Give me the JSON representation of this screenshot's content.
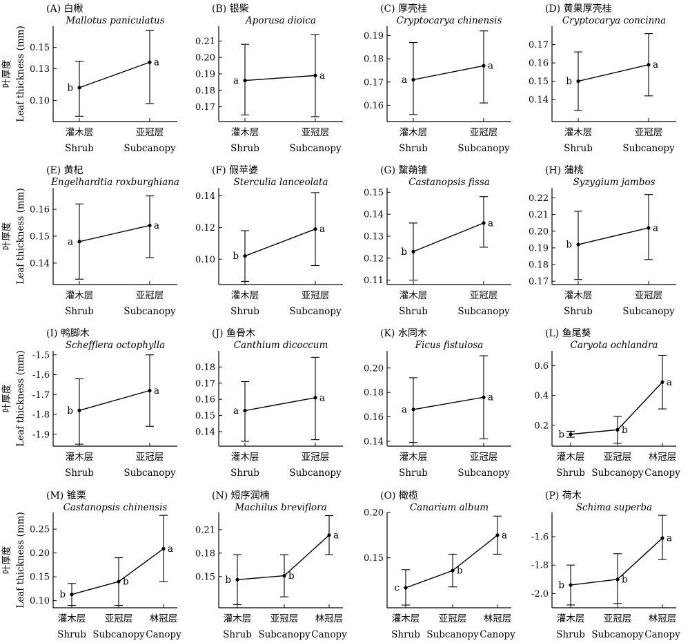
{
  "figure": {
    "ylabel_cn": "叶厚度",
    "ylabel_en": "Leaf thickness (mm)"
  },
  "chart_data": [
    {
      "id": "A",
      "type": "line",
      "label": "(A)",
      "title_cn": "白楸",
      "title_species": "Mallotus paniculatus",
      "categories_cn": [
        "灌木层",
        "亚冠层"
      ],
      "categories_en": [
        "Shrub",
        "Subcanopy"
      ],
      "mean": [
        0.112,
        0.136
      ],
      "lower": [
        0.085,
        0.097
      ],
      "upper": [
        0.137,
        0.166
      ],
      "sig": [
        "b",
        "a"
      ],
      "ylim": [
        0.08,
        0.17
      ],
      "yticks": [
        0.1,
        0.13,
        0.15
      ],
      "ytick_labels": [
        "0.10",
        "0.13",
        "0.15"
      ]
    },
    {
      "id": "B",
      "type": "line",
      "label": "(B)",
      "title_cn": "银柴",
      "title_species": "Aporusa dioica",
      "categories_cn": [
        "灌木层",
        "亚冠层"
      ],
      "categories_en": [
        "Shrub",
        "Subcanopy"
      ],
      "mean": [
        0.186,
        0.189
      ],
      "lower": [
        0.165,
        0.164
      ],
      "upper": [
        0.208,
        0.214
      ],
      "sig": [
        "a",
        "a"
      ],
      "ylim": [
        0.161,
        0.219
      ],
      "yticks": [
        0.17,
        0.18,
        0.19,
        0.2,
        0.21
      ],
      "ytick_labels": [
        "0.17",
        "0.18",
        "0.19",
        "0.20",
        "0.21"
      ]
    },
    {
      "id": "C",
      "type": "line",
      "label": "(C)",
      "title_cn": "厚壳桂",
      "title_species": "Cryptocarya chinensis",
      "categories_cn": [
        "灌木层",
        "亚冠层"
      ],
      "categories_en": [
        "Shrub",
        "Subcanopy"
      ],
      "mean": [
        0.171,
        0.177
      ],
      "lower": [
        0.156,
        0.161
      ],
      "upper": [
        0.187,
        0.192
      ],
      "sig": [
        "a",
        "a"
      ],
      "ylim": [
        0.153,
        0.194
      ],
      "yticks": [
        0.16,
        0.17,
        0.18,
        0.19
      ],
      "ytick_labels": [
        "0.16",
        "0.17",
        "0.18",
        "0.19"
      ]
    },
    {
      "id": "D",
      "type": "line",
      "label": "(D)",
      "title_cn": "黄果厚壳桂",
      "title_species": "Cryptocarya concinna",
      "categories_cn": [
        "灌木层",
        "亚冠层"
      ],
      "categories_en": [
        "Shrub",
        "Subcanopy"
      ],
      "mean": [
        0.15,
        0.159
      ],
      "lower": [
        0.134,
        0.142
      ],
      "upper": [
        0.166,
        0.176
      ],
      "sig": [
        "b",
        "a"
      ],
      "ylim": [
        0.128,
        0.18
      ],
      "yticks": [
        0.14,
        0.15,
        0.16,
        0.17
      ],
      "ytick_labels": [
        "0.14",
        "0.15",
        "0.16",
        "0.17"
      ]
    },
    {
      "id": "E",
      "type": "line",
      "label": "(E)",
      "title_cn": "黄杞",
      "title_species": "Engelhardtia roxburghiana",
      "categories_cn": [
        "灌木层",
        "亚冠层"
      ],
      "categories_en": [
        "Shrub",
        "Subcanopy"
      ],
      "mean": [
        0.148,
        0.154
      ],
      "lower": [
        0.134,
        0.142
      ],
      "upper": [
        0.162,
        0.165
      ],
      "sig": [
        "a",
        "a"
      ],
      "ylim": [
        0.132,
        0.168
      ],
      "yticks": [
        0.14,
        0.15,
        0.16
      ],
      "ytick_labels": [
        "0.14",
        "0.15",
        "0.16"
      ]
    },
    {
      "id": "F",
      "type": "line",
      "label": "(F)",
      "title_cn": "假苹婆",
      "title_species": "Sterculia lanceolata",
      "categories_cn": [
        "灌木层",
        "亚冠层"
      ],
      "categories_en": [
        "Shrub",
        "Subcanopy"
      ],
      "mean": [
        0.102,
        0.119
      ],
      "lower": [
        0.086,
        0.096
      ],
      "upper": [
        0.118,
        0.142
      ],
      "sig": [
        "b",
        "a"
      ],
      "ylim": [
        0.084,
        0.145
      ],
      "yticks": [
        0.1,
        0.12,
        0.14
      ],
      "ytick_labels": [
        "0.10",
        "0.12",
        "0.14"
      ]
    },
    {
      "id": "G",
      "type": "line",
      "label": "(G)",
      "title_cn": "黧蒴锥",
      "title_species": "Castanopsis fissa",
      "categories_cn": [
        "灌木层",
        "亚冠层"
      ],
      "categories_en": [
        "Shrub",
        "Subcanopy"
      ],
      "mean": [
        0.123,
        0.136
      ],
      "lower": [
        0.11,
        0.125
      ],
      "upper": [
        0.136,
        0.148
      ],
      "sig": [
        "b",
        "a"
      ],
      "ylim": [
        0.108,
        0.152
      ],
      "yticks": [
        0.11,
        0.12,
        0.13,
        0.14,
        0.15
      ],
      "ytick_labels": [
        "0.11",
        "0.12",
        "0.13",
        "0.14",
        "0.15"
      ]
    },
    {
      "id": "H",
      "type": "line",
      "label": "(H)",
      "title_cn": "蒲桃",
      "title_species": "Syzygium jambos",
      "categories_cn": [
        "灌木层",
        "亚冠层"
      ],
      "categories_en": [
        "Shrub",
        "Subcanopy"
      ],
      "mean": [
        0.192,
        0.202
      ],
      "lower": [
        0.171,
        0.183
      ],
      "upper": [
        0.212,
        0.222
      ],
      "sig": [
        "b",
        "a"
      ],
      "ylim": [
        0.168,
        0.226
      ],
      "yticks": [
        0.17,
        0.18,
        0.19,
        0.2,
        0.21,
        0.22
      ],
      "ytick_labels": [
        "0.17",
        "0.18",
        "0.19",
        "0.20",
        "0.21",
        "0.22"
      ]
    },
    {
      "id": "I",
      "type": "line",
      "label": "(I)",
      "title_cn": "鸭脚木",
      "title_species": "Schefflera octophylla",
      "categories_cn": [
        "灌木层",
        "亚冠层"
      ],
      "categories_en": [
        "Shrub",
        "Subcanopy"
      ],
      "mean": [
        -1.78,
        -1.68
      ],
      "lower": [
        -1.95,
        -1.86
      ],
      "upper": [
        -1.62,
        -1.5
      ],
      "sig": [
        "b",
        "a"
      ],
      "ylim": [
        -1.96,
        -1.48
      ],
      "yticks": [
        -1.9,
        -1.8,
        -1.7,
        -1.6,
        -1.5
      ],
      "ytick_labels": [
        "-1.9",
        "-1.8",
        "-1.7",
        "-1.6",
        "-1.5"
      ]
    },
    {
      "id": "J",
      "type": "line",
      "label": "(J)",
      "title_cn": "鱼骨木",
      "title_species": "Canthium dicoccum",
      "categories_cn": [
        "灌木层",
        "亚冠层"
      ],
      "categories_en": [
        "Shrub",
        "Subcanopy"
      ],
      "mean": [
        0.153,
        0.161
      ],
      "lower": [
        0.134,
        0.135
      ],
      "upper": [
        0.171,
        0.186
      ],
      "sig": [
        "a",
        "a"
      ],
      "ylim": [
        0.131,
        0.19
      ],
      "yticks": [
        0.14,
        0.15,
        0.16,
        0.17,
        0.18
      ],
      "ytick_labels": [
        "0.14",
        "0.15",
        "0.16",
        "0.17",
        "0.18"
      ]
    },
    {
      "id": "K",
      "type": "line",
      "label": "(K)",
      "title_cn": "水同木",
      "title_species": "Ficus fistulosa",
      "categories_cn": [
        "灌木层",
        "亚冠层"
      ],
      "categories_en": [
        "Shrub",
        "Subcanopy"
      ],
      "mean": [
        0.166,
        0.176
      ],
      "lower": [
        0.139,
        0.142
      ],
      "upper": [
        0.192,
        0.21
      ],
      "sig": [
        "a",
        "a"
      ],
      "ylim": [
        0.136,
        0.214
      ],
      "yticks": [
        0.14,
        0.16,
        0.18,
        0.2
      ],
      "ytick_labels": [
        "0.14",
        "0.16",
        "0.18",
        "0.20"
      ]
    },
    {
      "id": "L",
      "type": "line",
      "label": "(L)",
      "title_cn": "鱼尾葵",
      "title_species": "Caryota ochlandra",
      "categories_cn": [
        "灌木层",
        "亚冠层",
        "林冠层"
      ],
      "categories_en": [
        "Shrub",
        "Subcanopy",
        "Canopy"
      ],
      "mean": [
        0.14,
        0.17,
        0.49
      ],
      "lower": [
        0.12,
        0.08,
        0.31
      ],
      "upper": [
        0.16,
        0.26,
        0.67
      ],
      "sig": [
        "b",
        "b",
        "a"
      ],
      "ylim": [
        0.06,
        0.7
      ],
      "yticks": [
        0.2,
        0.4,
        0.6
      ],
      "ytick_labels": [
        "0.2",
        "0.4",
        "0.6"
      ]
    },
    {
      "id": "M",
      "type": "line",
      "label": "(M)",
      "title_cn": "锥栗",
      "title_species": "Castanopsis chinensis",
      "categories_cn": [
        "灌木层",
        "亚冠层",
        "林冠层"
      ],
      "categories_en": [
        "Shrub",
        "Subcanopy",
        "Canopy"
      ],
      "mean": [
        0.113,
        0.14,
        0.209
      ],
      "lower": [
        0.09,
        0.09,
        0.14
      ],
      "upper": [
        0.136,
        0.19,
        0.279
      ],
      "sig": [
        "b",
        "b",
        "a"
      ],
      "ylim": [
        0.085,
        0.285
      ],
      "yticks": [
        0.1,
        0.15,
        0.2,
        0.25
      ],
      "ytick_labels": [
        "0.10",
        "0.15",
        "0.20",
        "0.25"
      ]
    },
    {
      "id": "N",
      "type": "line",
      "label": "(N)",
      "title_cn": "短序润楠",
      "title_species": "Machilus breviflora",
      "categories_cn": [
        "灌木层",
        "亚冠层",
        "林冠层"
      ],
      "categories_en": [
        "Shrub",
        "Subcanopy",
        "Canopy"
      ],
      "mean": [
        0.146,
        0.151,
        0.203
      ],
      "lower": [
        0.114,
        0.124,
        0.178
      ],
      "upper": [
        0.178,
        0.178,
        0.228
      ],
      "sig": [
        "b",
        "b",
        "a"
      ],
      "ylim": [
        0.11,
        0.232
      ],
      "yticks": [
        0.15,
        0.18,
        0.21
      ],
      "ytick_labels": [
        "0.15",
        "0.18",
        "0.21"
      ]
    },
    {
      "id": "O",
      "type": "line",
      "label": "(O)",
      "title_cn": "橄榄",
      "title_species": "Canarium album",
      "categories_cn": [
        "灌木层",
        "亚冠层",
        "林冠层"
      ],
      "categories_en": [
        "Shrub",
        "Subcanopy",
        "Canopy"
      ],
      "mean": [
        0.117,
        0.136,
        0.175
      ],
      "lower": [
        0.098,
        0.118,
        0.154
      ],
      "upper": [
        0.137,
        0.154,
        0.196
      ],
      "sig": [
        "c",
        "b",
        "a"
      ],
      "ylim": [
        0.095,
        0.2
      ],
      "yticks": [
        0.15,
        0.2
      ],
      "ytick_labels": [
        "0.15",
        "0.20"
      ]
    },
    {
      "id": "P",
      "type": "line",
      "label": "(P)",
      "title_cn": "荷木",
      "title_species": "Schima superba",
      "categories_cn": [
        "灌木层",
        "亚冠层",
        "林冠层"
      ],
      "categories_en": [
        "Shrub",
        "Subcanopy",
        "Canopy"
      ],
      "mean": [
        -1.94,
        -1.9,
        -1.61
      ],
      "lower": [
        -2.08,
        -2.07,
        -1.76
      ],
      "upper": [
        -1.8,
        -1.72,
        -1.45
      ],
      "sig": [
        "b",
        "b",
        "a"
      ],
      "ylim": [
        -2.1,
        -1.43
      ],
      "yticks": [
        -2.0,
        -1.8,
        -1.6
      ],
      "ytick_labels": [
        "-2.0",
        "-1.8",
        "-1.6"
      ]
    }
  ]
}
